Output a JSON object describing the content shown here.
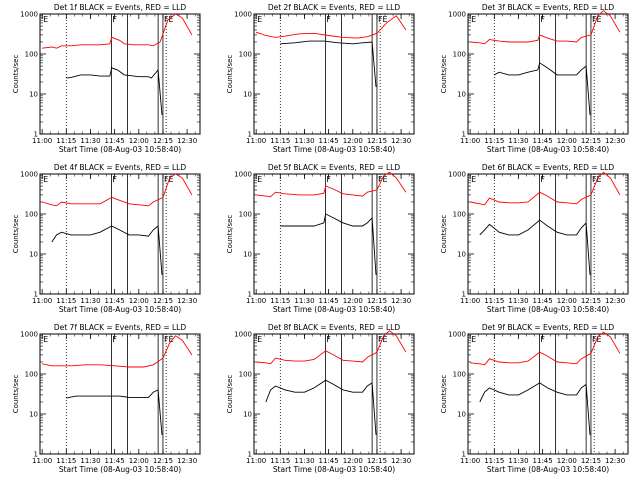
{
  "shared": {
    "type": "line",
    "xlabel": "Start Time (08-Aug-03 10:58:40)",
    "ylabel": "Counts/sec",
    "x_ticks": [
      "11:00",
      "11:15",
      "11:30",
      "11:45",
      "12:00",
      "12:15",
      "12:30"
    ],
    "y_ticks": [
      "1",
      "10",
      "100",
      "1000"
    ],
    "y_scale": "log",
    "ylim": [
      1,
      1000
    ],
    "xlim": [
      "10:58:40",
      "12:38:00"
    ],
    "dotted_markers": [
      "11:15",
      "12:17"
    ],
    "interval_lines": [
      "11:43",
      "11:53",
      "12:12",
      "12:15"
    ],
    "interval_labels": [
      {
        "text": "E",
        "at": "11:00"
      },
      {
        "text": "F",
        "at": "11:43"
      },
      {
        "text": "FE",
        "at": "12:15"
      }
    ],
    "series_colors": {
      "events": "#000000",
      "lld": "#ff0000"
    }
  },
  "chart_data": [
    {
      "title": "Det 1f BLACK = Events, RED = LLD",
      "events": [
        [
          11.25,
          25
        ],
        [
          11.3,
          26
        ],
        [
          11.4,
          30
        ],
        [
          11.5,
          30
        ],
        [
          11.6,
          28
        ],
        [
          11.7,
          28
        ],
        [
          11.72,
          45
        ],
        [
          11.78,
          40
        ],
        [
          11.85,
          30
        ],
        [
          11.95,
          28
        ],
        [
          12.0,
          27
        ],
        [
          12.1,
          27
        ],
        [
          12.13,
          25
        ],
        [
          12.2,
          40
        ],
        [
          12.24,
          3
        ]
      ],
      "lld": [
        [
          11.0,
          140
        ],
        [
          11.1,
          150
        ],
        [
          11.15,
          140
        ],
        [
          11.2,
          160
        ],
        [
          11.3,
          160
        ],
        [
          11.4,
          170
        ],
        [
          11.5,
          170
        ],
        [
          11.6,
          170
        ],
        [
          11.7,
          180
        ],
        [
          11.72,
          260
        ],
        [
          11.8,
          220
        ],
        [
          11.85,
          180
        ],
        [
          11.95,
          170
        ],
        [
          12.0,
          170
        ],
        [
          12.1,
          170
        ],
        [
          12.15,
          160
        ],
        [
          12.22,
          200
        ],
        [
          12.3,
          700
        ],
        [
          12.38,
          1000
        ],
        [
          12.45,
          800
        ],
        [
          12.55,
          300
        ]
      ]
    },
    {
      "title": "Det 2f BLACK = Events, RED = LLD",
      "events": [
        [
          11.25,
          180
        ],
        [
          11.4,
          190
        ],
        [
          11.55,
          210
        ],
        [
          11.7,
          210
        ],
        [
          11.85,
          190
        ],
        [
          12.0,
          180
        ],
        [
          12.1,
          190
        ],
        [
          12.2,
          200
        ],
        [
          12.24,
          15
        ]
      ],
      "lld": [
        [
          11.0,
          350
        ],
        [
          11.1,
          290
        ],
        [
          11.2,
          260
        ],
        [
          11.3,
          280
        ],
        [
          11.45,
          320
        ],
        [
          11.6,
          330
        ],
        [
          11.75,
          290
        ],
        [
          11.9,
          260
        ],
        [
          12.05,
          250
        ],
        [
          12.15,
          270
        ],
        [
          12.25,
          330
        ],
        [
          12.35,
          600
        ],
        [
          12.45,
          900
        ],
        [
          12.55,
          400
        ]
      ]
    },
    {
      "title": "Det 3f BLACK = Events, RED = LLD",
      "events": [
        [
          11.25,
          30
        ],
        [
          11.3,
          35
        ],
        [
          11.4,
          30
        ],
        [
          11.5,
          30
        ],
        [
          11.6,
          35
        ],
        [
          11.7,
          40
        ],
        [
          11.72,
          60
        ],
        [
          11.8,
          45
        ],
        [
          11.9,
          30
        ],
        [
          12.0,
          30
        ],
        [
          12.1,
          30
        ],
        [
          12.15,
          40
        ],
        [
          12.2,
          50
        ],
        [
          12.24,
          3
        ]
      ],
      "lld": [
        [
          11.0,
          200
        ],
        [
          11.1,
          190
        ],
        [
          11.15,
          180
        ],
        [
          11.2,
          230
        ],
        [
          11.3,
          210
        ],
        [
          11.4,
          200
        ],
        [
          11.5,
          200
        ],
        [
          11.6,
          200
        ],
        [
          11.7,
          220
        ],
        [
          11.72,
          300
        ],
        [
          11.8,
          250
        ],
        [
          11.9,
          210
        ],
        [
          12.0,
          210
        ],
        [
          12.1,
          200
        ],
        [
          12.15,
          260
        ],
        [
          12.25,
          300
        ],
        [
          12.32,
          900
        ],
        [
          12.38,
          1200
        ],
        [
          12.45,
          900
        ],
        [
          12.55,
          350
        ]
      ]
    },
    {
      "title": "Det 4f BLACK = Events, RED = LLD",
      "events": [
        [
          11.1,
          20
        ],
        [
          11.15,
          30
        ],
        [
          11.2,
          35
        ],
        [
          11.3,
          30
        ],
        [
          11.4,
          30
        ],
        [
          11.5,
          30
        ],
        [
          11.6,
          35
        ],
        [
          11.72,
          50
        ],
        [
          11.8,
          40
        ],
        [
          11.9,
          30
        ],
        [
          12.0,
          30
        ],
        [
          12.1,
          28
        ],
        [
          12.15,
          40
        ],
        [
          12.2,
          50
        ],
        [
          12.24,
          3
        ]
      ],
      "lld": [
        [
          11.0,
          200
        ],
        [
          11.1,
          170
        ],
        [
          11.15,
          160
        ],
        [
          11.2,
          200
        ],
        [
          11.3,
          180
        ],
        [
          11.4,
          180
        ],
        [
          11.5,
          180
        ],
        [
          11.6,
          180
        ],
        [
          11.72,
          260
        ],
        [
          11.8,
          220
        ],
        [
          11.9,
          180
        ],
        [
          12.0,
          170
        ],
        [
          12.1,
          160
        ],
        [
          12.15,
          200
        ],
        [
          12.25,
          260
        ],
        [
          12.32,
          800
        ],
        [
          12.38,
          1000
        ],
        [
          12.45,
          800
        ],
        [
          12.55,
          300
        ]
      ]
    },
    {
      "title": "Det 5f BLACK = Events, RED = LLD",
      "events": [
        [
          11.25,
          50
        ],
        [
          11.35,
          50
        ],
        [
          11.45,
          50
        ],
        [
          11.6,
          50
        ],
        [
          11.7,
          60
        ],
        [
          11.72,
          100
        ],
        [
          11.8,
          80
        ],
        [
          11.9,
          60
        ],
        [
          12.0,
          50
        ],
        [
          12.1,
          50
        ],
        [
          12.15,
          60
        ],
        [
          12.2,
          80
        ],
        [
          12.24,
          3
        ]
      ],
      "lld": [
        [
          11.0,
          300
        ],
        [
          11.1,
          280
        ],
        [
          11.15,
          270
        ],
        [
          11.2,
          350
        ],
        [
          11.3,
          320
        ],
        [
          11.45,
          300
        ],
        [
          11.6,
          300
        ],
        [
          11.7,
          330
        ],
        [
          11.72,
          500
        ],
        [
          11.8,
          420
        ],
        [
          11.9,
          320
        ],
        [
          12.0,
          300
        ],
        [
          12.1,
          280
        ],
        [
          12.15,
          350
        ],
        [
          12.25,
          400
        ],
        [
          12.32,
          900
        ],
        [
          12.38,
          1100
        ],
        [
          12.45,
          800
        ],
        [
          12.55,
          350
        ]
      ]
    },
    {
      "title": "Det 6f BLACK = Events, RED = LLD",
      "events": [
        [
          11.1,
          30
        ],
        [
          11.15,
          40
        ],
        [
          11.2,
          55
        ],
        [
          11.3,
          35
        ],
        [
          11.4,
          30
        ],
        [
          11.5,
          30
        ],
        [
          11.6,
          40
        ],
        [
          11.72,
          70
        ],
        [
          11.8,
          50
        ],
        [
          11.9,
          35
        ],
        [
          12.0,
          30
        ],
        [
          12.1,
          30
        ],
        [
          12.15,
          45
        ],
        [
          12.2,
          60
        ],
        [
          12.24,
          3
        ]
      ],
      "lld": [
        [
          11.0,
          200
        ],
        [
          11.1,
          180
        ],
        [
          11.15,
          170
        ],
        [
          11.2,
          250
        ],
        [
          11.3,
          200
        ],
        [
          11.4,
          190
        ],
        [
          11.5,
          190
        ],
        [
          11.6,
          200
        ],
        [
          11.72,
          350
        ],
        [
          11.8,
          280
        ],
        [
          11.9,
          200
        ],
        [
          12.0,
          190
        ],
        [
          12.1,
          180
        ],
        [
          12.15,
          230
        ],
        [
          12.25,
          300
        ],
        [
          12.32,
          800
        ],
        [
          12.38,
          1100
        ],
        [
          12.45,
          800
        ],
        [
          12.55,
          300
        ]
      ]
    },
    {
      "title": "Det 7f BLACK = Events, RED = LLD",
      "events": [
        [
          11.25,
          25
        ],
        [
          11.35,
          28
        ],
        [
          11.5,
          28
        ],
        [
          11.6,
          28
        ],
        [
          11.7,
          28
        ],
        [
          11.8,
          28
        ],
        [
          11.9,
          26
        ],
        [
          12.0,
          26
        ],
        [
          12.1,
          26
        ],
        [
          12.15,
          35
        ],
        [
          12.2,
          40
        ],
        [
          12.24,
          3
        ]
      ],
      "lld": [
        [
          11.0,
          180
        ],
        [
          11.1,
          160
        ],
        [
          11.2,
          160
        ],
        [
          11.3,
          160
        ],
        [
          11.45,
          170
        ],
        [
          11.6,
          170
        ],
        [
          11.75,
          160
        ],
        [
          11.9,
          150
        ],
        [
          12.05,
          150
        ],
        [
          12.15,
          170
        ],
        [
          12.25,
          250
        ],
        [
          12.32,
          600
        ],
        [
          12.38,
          900
        ],
        [
          12.45,
          700
        ],
        [
          12.55,
          300
        ]
      ]
    },
    {
      "title": "Det 8f BLACK = Events, RED = LLD",
      "events": [
        [
          11.1,
          20
        ],
        [
          11.15,
          40
        ],
        [
          11.2,
          50
        ],
        [
          11.3,
          40
        ],
        [
          11.4,
          35
        ],
        [
          11.5,
          35
        ],
        [
          11.6,
          45
        ],
        [
          11.72,
          70
        ],
        [
          11.8,
          55
        ],
        [
          11.9,
          40
        ],
        [
          12.0,
          35
        ],
        [
          12.1,
          35
        ],
        [
          12.15,
          50
        ],
        [
          12.2,
          60
        ],
        [
          12.24,
          3
        ]
      ],
      "lld": [
        [
          11.0,
          200
        ],
        [
          11.1,
          190
        ],
        [
          11.15,
          180
        ],
        [
          11.2,
          250
        ],
        [
          11.3,
          220
        ],
        [
          11.4,
          210
        ],
        [
          11.5,
          210
        ],
        [
          11.6,
          230
        ],
        [
          11.72,
          380
        ],
        [
          11.8,
          300
        ],
        [
          11.9,
          220
        ],
        [
          12.0,
          210
        ],
        [
          12.1,
          200
        ],
        [
          12.15,
          260
        ],
        [
          12.25,
          350
        ],
        [
          12.32,
          900
        ],
        [
          12.38,
          1200
        ],
        [
          12.45,
          900
        ],
        [
          12.55,
          350
        ]
      ]
    },
    {
      "title": "Det 9f BLACK = Events, RED = LLD",
      "events": [
        [
          11.1,
          20
        ],
        [
          11.15,
          35
        ],
        [
          11.2,
          45
        ],
        [
          11.3,
          35
        ],
        [
          11.4,
          30
        ],
        [
          11.5,
          30
        ],
        [
          11.6,
          40
        ],
        [
          11.72,
          60
        ],
        [
          11.8,
          45
        ],
        [
          11.9,
          35
        ],
        [
          12.0,
          30
        ],
        [
          12.1,
          30
        ],
        [
          12.15,
          45
        ],
        [
          12.2,
          55
        ],
        [
          12.24,
          3
        ]
      ],
      "lld": [
        [
          11.0,
          190
        ],
        [
          11.1,
          180
        ],
        [
          11.15,
          170
        ],
        [
          11.2,
          240
        ],
        [
          11.3,
          200
        ],
        [
          11.4,
          190
        ],
        [
          11.5,
          190
        ],
        [
          11.6,
          210
        ],
        [
          11.72,
          350
        ],
        [
          11.8,
          280
        ],
        [
          11.9,
          200
        ],
        [
          12.0,
          190
        ],
        [
          12.1,
          180
        ],
        [
          12.15,
          240
        ],
        [
          12.25,
          330
        ],
        [
          12.32,
          850
        ],
        [
          12.38,
          1100
        ],
        [
          12.45,
          850
        ],
        [
          12.55,
          330
        ]
      ]
    }
  ]
}
